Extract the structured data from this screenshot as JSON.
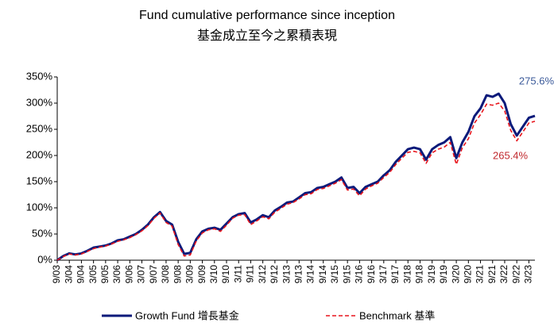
{
  "chart_data": {
    "type": "line",
    "title": "Fund cumulative performance since inception",
    "subtitle": "基金成立至今之累積表現",
    "categories": [
      "9/03",
      null,
      "3/04",
      null,
      "9/04",
      null,
      "3/05",
      null,
      "9/05",
      null,
      "3/06",
      null,
      "9/06",
      null,
      "3/07",
      null,
      "9/07",
      null,
      "3/08",
      null,
      "9/08",
      null,
      "3/09",
      null,
      "9/09",
      null,
      "3/10",
      null,
      "9/10",
      null,
      "3/11",
      null,
      "9/11",
      null,
      "3/12",
      null,
      "9/12",
      null,
      "3/13",
      null,
      "9/13",
      null,
      "3/14",
      null,
      "9/14",
      null,
      "3/15",
      null,
      "9/15",
      null,
      "3/16",
      null,
      "9/16",
      null,
      "3/17",
      null,
      "9/17",
      null,
      "3/18",
      null,
      "9/18",
      null,
      "3/19",
      null,
      "9/19",
      null,
      "3/20",
      null,
      "9/20",
      null,
      "3/21",
      null,
      "9/21",
      null,
      "3/22",
      null,
      "9/22",
      null,
      "3/23",
      null
    ],
    "series": [
      {
        "name": "Growth Fund 增長基金",
        "color": "#0b1a7a",
        "dash": false,
        "values": [
          0,
          8,
          13,
          11,
          13,
          18,
          24,
          26,
          28,
          32,
          38,
          40,
          45,
          50,
          58,
          68,
          82,
          92,
          75,
          68,
          35,
          12,
          14,
          40,
          55,
          60,
          62,
          58,
          70,
          82,
          88,
          90,
          72,
          78,
          86,
          82,
          95,
          102,
          110,
          112,
          120,
          128,
          130,
          138,
          140,
          145,
          150,
          158,
          138,
          140,
          128,
          140,
          145,
          150,
          162,
          172,
          188,
          200,
          212,
          215,
          212,
          192,
          212,
          220,
          225,
          235,
          195,
          225,
          245,
          275,
          290,
          315,
          312,
          318,
          300,
          260,
          238,
          255,
          272,
          275.6
        ]
      },
      {
        "name": "Benchmark 基準",
        "color": "#e8141b",
        "dash": true,
        "values": [
          0,
          7,
          12,
          10,
          12,
          17,
          22,
          25,
          27,
          31,
          36,
          39,
          43,
          49,
          56,
          66,
          80,
          90,
          72,
          65,
          30,
          8,
          10,
          37,
          52,
          58,
          60,
          55,
          67,
          80,
          86,
          87,
          68,
          75,
          83,
          79,
          92,
          99,
          107,
          110,
          117,
          125,
          127,
          135,
          137,
          142,
          147,
          154,
          134,
          136,
          123,
          136,
          142,
          147,
          158,
          168,
          183,
          195,
          206,
          208,
          205,
          185,
          205,
          212,
          216,
          225,
          183,
          215,
          232,
          262,
          278,
          298,
          296,
          300,
          285,
          248,
          228,
          245,
          262,
          265.4
        ]
      }
    ],
    "ylim": [
      0,
      350
    ],
    "yticks": [
      {
        "value": 0,
        "label": "0%"
      },
      {
        "value": 50,
        "label": "50%"
      },
      {
        "value": 100,
        "label": "100%"
      },
      {
        "value": 150,
        "label": "150%"
      },
      {
        "value": 200,
        "label": "200%"
      },
      {
        "value": 250,
        "label": "250%"
      },
      {
        "value": 300,
        "label": "300%"
      },
      {
        "value": 350,
        "label": "350%"
      }
    ],
    "annotations": [
      {
        "text": "275.6%",
        "color": "#3b5a9a"
      },
      {
        "text": "265.4%",
        "color": "#c0282d"
      }
    ],
    "grid": false
  }
}
